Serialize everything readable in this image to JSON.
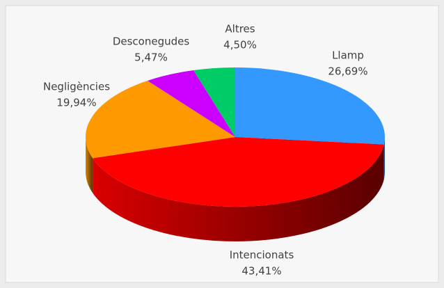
{
  "chart_data": {
    "type": "pie3d",
    "categories": [
      "Llamp",
      "Intencionats",
      "Negligències",
      "Desconegudes",
      "Altres"
    ],
    "values": [
      26.69,
      43.41,
      19.94,
      5.47,
      4.5
    ],
    "value_labels": [
      "26,69%",
      "43,41%",
      "19,94%",
      "5,47%",
      "4,50%"
    ],
    "colors": [
      "#3399ff",
      "#ff0000",
      "#ff9900",
      "#cc00ff",
      "#00cc66"
    ]
  }
}
